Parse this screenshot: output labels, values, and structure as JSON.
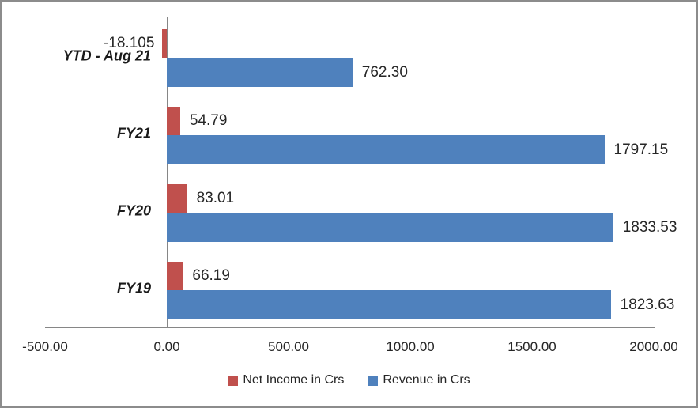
{
  "window": {
    "background": "#ffffff",
    "border_color": "#8c8c8c"
  },
  "chart_data": {
    "type": "bar",
    "orientation": "horizontal",
    "title": "",
    "xlabel": "",
    "ylabel": "",
    "grid": false,
    "legend_position": "bottom",
    "categories_top_to_bottom": [
      "YTD - Aug 21",
      "FY21",
      "FY20",
      "FY19"
    ],
    "series": [
      {
        "name": "Net Income in Crs",
        "color": "#C0504D",
        "values": [
          -18.105,
          54.79,
          83.01,
          66.19
        ],
        "labels": [
          "-18.105",
          "54.79",
          "83.01",
          "66.19"
        ]
      },
      {
        "name": "Revenue in Crs",
        "color": "#4F81BD",
        "values": [
          762.3,
          1797.15,
          1833.53,
          1823.63
        ],
        "labels": [
          "762.30",
          "1797.15",
          "1833.53",
          "1823.63"
        ]
      }
    ],
    "x_axis": {
      "min": -500,
      "max": 2000,
      "ticks": [
        {
          "label": "-500.00",
          "value": -500
        },
        {
          "label": "0.00",
          "value": 0
        },
        {
          "label": "500.00",
          "value": 500
        },
        {
          "label": "1000.00",
          "value": 1000
        },
        {
          "label": "1500.00",
          "value": 1500
        },
        {
          "label": "2000.00",
          "value": 2000
        }
      ]
    },
    "axis_color": "#868686",
    "text_color": "#262626"
  }
}
